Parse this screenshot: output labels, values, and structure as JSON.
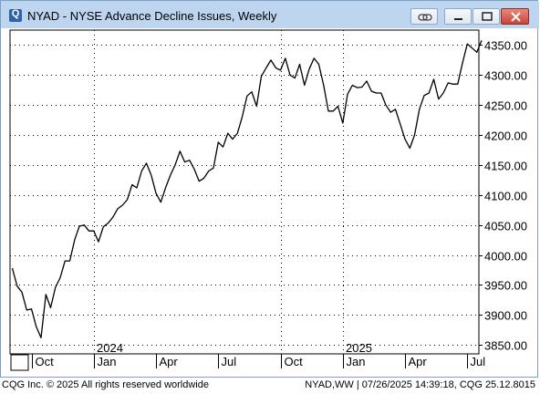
{
  "window": {
    "title": "NYAD - NYSE Advance Decline Issues, Weekly",
    "app_icon_letter": "Q"
  },
  "status_bar": {
    "left": "CQG Inc. © 2025 All rights reserved worldwide",
    "right": "NYAD,WW | 07/26/2025 14:39:18, CQG 25.12.8015"
  },
  "chart_data": {
    "type": "line",
    "title": "",
    "xlabel": "",
    "ylabel": "",
    "ylim": [
      3835,
      4375
    ],
    "yticks": [
      3850,
      3900,
      3950,
      4000,
      4050,
      4100,
      4150,
      4200,
      4250,
      4300,
      4350
    ],
    "ytick_labels": [
      "3850.00",
      "3900.00",
      "3950.00",
      "4000.00",
      "4050.00",
      "4100.00",
      "4150.00",
      "4200.00",
      "4250.00",
      "4300.00",
      "4350.00"
    ],
    "xticks": [
      {
        "week": 4,
        "label": "Oct"
      },
      {
        "week": 17,
        "label": "Jan"
      },
      {
        "week": 30,
        "label": "Apr"
      },
      {
        "week": 43,
        "label": "Jul"
      },
      {
        "week": 56,
        "label": "Oct"
      },
      {
        "week": 69,
        "label": "Jan"
      },
      {
        "week": 82,
        "label": "Apr"
      },
      {
        "week": 95,
        "label": "Jul"
      }
    ],
    "year_labels": [
      {
        "week": 17,
        "label": "2024"
      },
      {
        "week": 69,
        "label": "2025"
      }
    ],
    "vertical_gridlines_weeks": [
      17,
      56,
      69
    ],
    "grid": true,
    "line_color": "#000000",
    "series": [
      {
        "values": [
          3978,
          3948,
          3938,
          3908,
          3910,
          3880,
          3862,
          3934,
          3912,
          3946,
          3962,
          3990,
          3990,
          4025,
          4048,
          4050,
          4040,
          4040,
          4022,
          4047,
          4053,
          4063,
          4077,
          4083,
          4092,
          4117,
          4112,
          4140,
          4153,
          4133,
          4103,
          4088,
          4112,
          4133,
          4150,
          4173,
          4155,
          4158,
          4143,
          4123,
          4128,
          4140,
          4145,
          4188,
          4180,
          4203,
          4193,
          4203,
          4230,
          4265,
          4272,
          4248,
          4298,
          4312,
          4325,
          4312,
          4308,
          4328,
          4300,
          4295,
          4318,
          4283,
          4310,
          4328,
          4318,
          4283,
          4240,
          4240,
          4248,
          4220,
          4268,
          4283,
          4279,
          4280,
          4290,
          4273,
          4270,
          4270,
          4250,
          4238,
          4243,
          4218,
          4193,
          4178,
          4200,
          4243,
          4266,
          4270,
          4293,
          4260,
          4270,
          4287,
          4285,
          4285,
          4320,
          4352,
          4345,
          4338,
          4358
        ]
      }
    ]
  }
}
